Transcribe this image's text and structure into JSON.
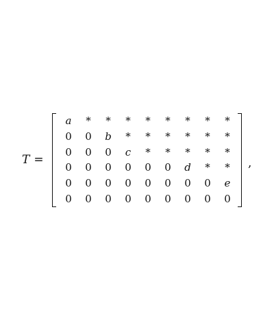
{
  "equation": {
    "lhs_variable": "T",
    "equals": "=",
    "trailing_punctuation": ",",
    "matrix_rows": [
      [
        "a",
        "*",
        "*",
        "*",
        "*",
        "*",
        "*",
        "*",
        "*"
      ],
      [
        "0",
        "0",
        "b",
        "*",
        "*",
        "*",
        "*",
        "*",
        "*"
      ],
      [
        "0",
        "0",
        "0",
        "c",
        "*",
        "*",
        "*",
        "*",
        "*"
      ],
      [
        "0",
        "0",
        "0",
        "0",
        "0",
        "0",
        "d",
        "*",
        "*"
      ],
      [
        "0",
        "0",
        "0",
        "0",
        "0",
        "0",
        "0",
        "0",
        "e"
      ],
      [
        "0",
        "0",
        "0",
        "0",
        "0",
        "0",
        "0",
        "0",
        "0"
      ]
    ]
  }
}
